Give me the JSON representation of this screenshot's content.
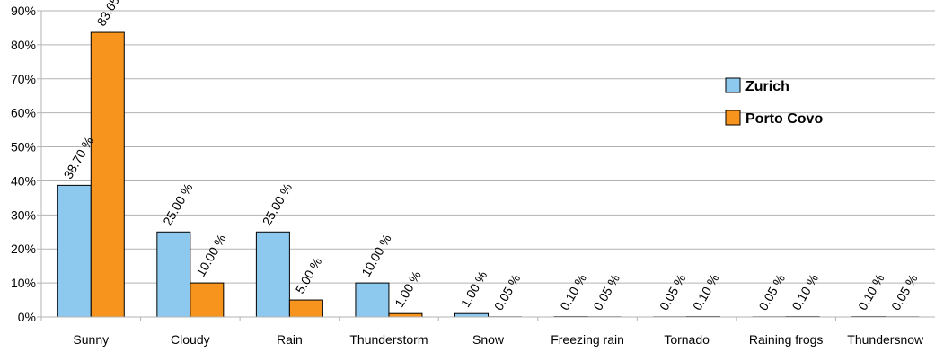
{
  "chart_data": {
    "type": "bar",
    "title": "",
    "xlabel": "",
    "ylabel": "",
    "ylim": [
      0,
      90
    ],
    "ytick_step": 10,
    "ytick_suffix": "%",
    "grid": true,
    "legend_position": "right",
    "categories": [
      "Sunny",
      "Cloudy",
      "Rain",
      "Thunderstorm",
      "Snow",
      "Freezing rain",
      "Tornado",
      "Raining frogs",
      "Thundersnow"
    ],
    "series": [
      {
        "name": "Zurich",
        "color": "#8DC8EE",
        "values": [
          38.7,
          25.0,
          25.0,
          10.0,
          1.0,
          0.1,
          0.05,
          0.05,
          0.1
        ],
        "labels": [
          "38.70 %",
          "25.00 %",
          "25.00 %",
          "10.00 %",
          "1.00 %",
          "0.10 %",
          "0.05 %",
          "0.05 %",
          "0.10 %"
        ]
      },
      {
        "name": "Porto Covo",
        "color": "#F7941D",
        "values": [
          83.65,
          10.0,
          5.0,
          1.0,
          0.05,
          0.05,
          0.1,
          0.1,
          0.05
        ],
        "labels": [
          "83.65 %",
          "10.00 %",
          "5.00 %",
          "1.00 %",
          "0.05 %",
          "0.05 %",
          "0.10 %",
          "0.10 %",
          "0.05 %"
        ]
      }
    ]
  }
}
